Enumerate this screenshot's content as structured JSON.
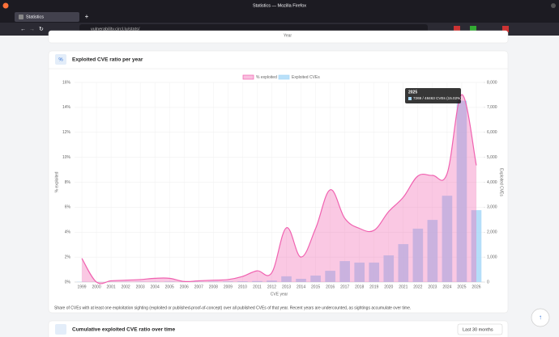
{
  "browser": {
    "window_title": "Statistics — Mozilla Firefox",
    "tab": "Statistics",
    "url": "vulnerability.circl.lu/stats/"
  },
  "prev_card_axis_label": "Year",
  "card_title": "Exploited CVE ratio per year",
  "caption": "Share of CVEs with at least one exploitation sighting (exploited or published-proof-of-concept) over all published CVEs of that year. Recent years are undercounted, as sightings accumulate over time.",
  "tooltip": {
    "title": "2025",
    "text": "7269 / 48463 CVEs (15.02%)"
  },
  "next_card": {
    "title": "Cumulative exploited CVE ratio over time",
    "dropdown": "Last 30 months"
  },
  "chart_data": {
    "type": "bar",
    "xlabel": "CVE year",
    "ylabel": "% exploited",
    "y2label": "Exploited CVEs",
    "categories": [
      "1999",
      "2000",
      "2001",
      "2002",
      "2003",
      "2004",
      "2005",
      "2006",
      "2007",
      "2008",
      "2009",
      "2010",
      "2011",
      "2012",
      "2013",
      "2014",
      "2015",
      "2016",
      "2017",
      "2018",
      "2019",
      "2020",
      "2021",
      "2022",
      "2023",
      "2024",
      "2025",
      "2026"
    ],
    "series": [
      {
        "name": "% exploited",
        "type": "line",
        "axis": "y",
        "color": "#f062b0",
        "values": [
          1.9,
          0,
          0.1,
          0.15,
          0.2,
          0.3,
          0.3,
          0.05,
          0.1,
          0.15,
          0.2,
          0.45,
          0.9,
          0.75,
          4.35,
          2.0,
          4.3,
          7.4,
          5.1,
          4.3,
          4.15,
          5.65,
          6.8,
          8.5,
          8.55,
          8.7,
          15.02,
          9.35
        ]
      },
      {
        "name": "Exploited CVEs",
        "type": "bar",
        "axis": "y2",
        "color": "#a8d8f8",
        "values": [
          10,
          5,
          8,
          10,
          12,
          15,
          20,
          10,
          15,
          20,
          25,
          30,
          40,
          60,
          230,
          130,
          260,
          450,
          840,
          780,
          780,
          1070,
          1520,
          2140,
          2490,
          3460,
          7269,
          2880
        ]
      }
    ],
    "ylim": [
      0,
      16
    ],
    "yticks": [
      {
        "value": 0,
        "label": "0%"
      },
      {
        "value": 2,
        "label": "2%"
      },
      {
        "value": 4,
        "label": "4%"
      },
      {
        "value": 6,
        "label": "6%"
      },
      {
        "value": 8,
        "label": "8%"
      },
      {
        "value": 10,
        "label": "10%"
      },
      {
        "value": 12,
        "label": "12%"
      },
      {
        "value": 14,
        "label": "14%"
      },
      {
        "value": 16,
        "label": "16%"
      }
    ],
    "y2lim": [
      0,
      8000
    ],
    "y2ticks": [
      0,
      {
        "value": 1000,
        "label": "1,000"
      },
      {
        "value": 2000,
        "label": "2,000"
      },
      {
        "value": 3000,
        "label": "3,000"
      },
      {
        "value": 4000,
        "label": "4,000"
      },
      {
        "value": 5000,
        "label": "5,000"
      },
      {
        "value": 6000,
        "label": "6,000"
      },
      {
        "value": 7000,
        "label": "7,000"
      },
      {
        "value": 8000,
        "label": "8,000"
      }
    ],
    "grid": true,
    "legend": "top"
  }
}
